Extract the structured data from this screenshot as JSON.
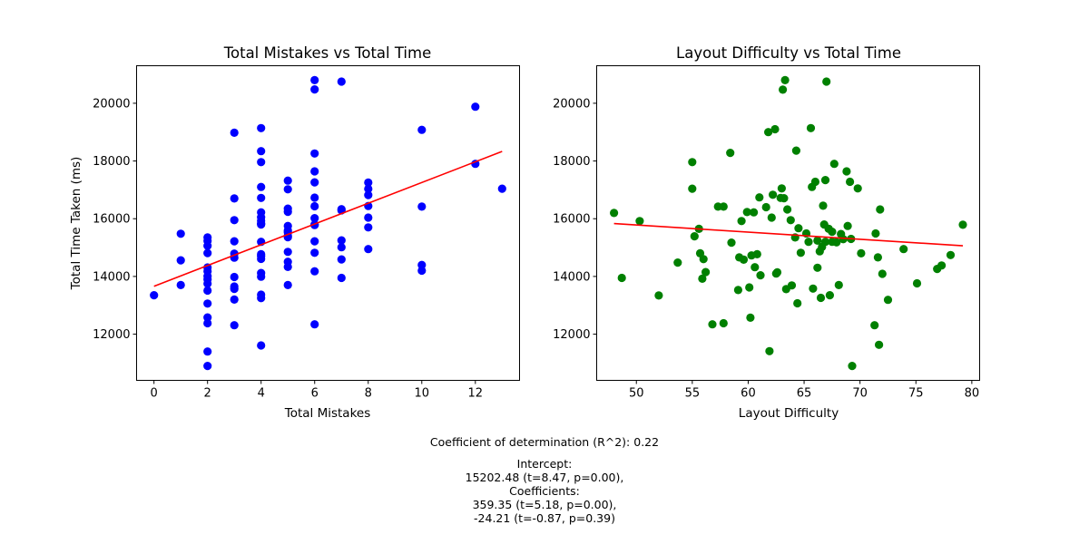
{
  "chart_data": [
    {
      "type": "scatter",
      "title": "Total Mistakes vs Total Time",
      "xlabel": "Total Mistakes",
      "ylabel": "Total Time Taken (ms)",
      "xlim": [
        -0.65,
        13.65
      ],
      "ylim": [
        10400,
        21300
      ],
      "xticks": [
        0,
        2,
        4,
        6,
        8,
        10,
        12
      ],
      "yticks": [
        12000,
        14000,
        16000,
        18000,
        20000
      ],
      "grid": false,
      "point_color": "#0000ff",
      "line_color": "#ff0000",
      "fit_line": {
        "x": [
          0,
          13
        ],
        "y": [
          13660,
          18330
        ]
      },
      "points": {
        "x": [
          0,
          1,
          1,
          1,
          2,
          2,
          2,
          2,
          2,
          2,
          2,
          2,
          2,
          2,
          2,
          2,
          2,
          2,
          2,
          3,
          3,
          3,
          3,
          3,
          3,
          3,
          3,
          3,
          3,
          3,
          4,
          4,
          4,
          4,
          4,
          4,
          4,
          4,
          4,
          4,
          4,
          4,
          4,
          4,
          4,
          4,
          4,
          4,
          4,
          5,
          5,
          5,
          5,
          5,
          5,
          5,
          5,
          5,
          5,
          5,
          5,
          5,
          6,
          6,
          6,
          6,
          6,
          6,
          6,
          6,
          6,
          6,
          6,
          6,
          6,
          6,
          7,
          7,
          7,
          7,
          7,
          7,
          7,
          8,
          8,
          8,
          8,
          8,
          8,
          8,
          10,
          10,
          10,
          10,
          12,
          12,
          13
        ],
        "y": [
          13350,
          15480,
          14560,
          13700,
          15350,
          15230,
          15060,
          14810,
          14310,
          14010,
          13750,
          13510,
          13060,
          12580,
          12380,
          11400,
          10900,
          13900,
          14180,
          18980,
          16700,
          15950,
          15220,
          14790,
          14650,
          13980,
          13650,
          13570,
          13200,
          12310,
          19140,
          18340,
          17960,
          17100,
          16720,
          16220,
          16050,
          15930,
          15830,
          15200,
          14770,
          14610,
          14120,
          13990,
          13370,
          13250,
          11610,
          14700,
          15800,
          17320,
          17020,
          16350,
          16240,
          15750,
          15590,
          15410,
          15360,
          14850,
          14510,
          14330,
          13700,
          15530,
          20800,
          20480,
          18260,
          17640,
          17260,
          16730,
          16430,
          15800,
          15780,
          15220,
          14820,
          14180,
          12340,
          16020,
          20750,
          16330,
          16290,
          15250,
          15010,
          14590,
          13950,
          17250,
          17030,
          16820,
          16440,
          16040,
          15700,
          14950,
          19080,
          16420,
          14400,
          14200,
          19880,
          17900,
          17040
        ]
      }
    },
    {
      "type": "scatter",
      "title": "Layout Difficulty vs Total Time",
      "xlabel": "Layout Difficulty",
      "ylabel": "",
      "xlim": [
        46.45,
        80.7
      ],
      "ylim": [
        10400,
        21300
      ],
      "xticks": [
        50,
        55,
        60,
        65,
        70,
        75,
        80
      ],
      "yticks": [
        12000,
        14000,
        16000,
        18000,
        20000
      ],
      "grid": false,
      "point_color": "#008000",
      "line_color": "#ff0000",
      "fit_line": {
        "x": [
          48,
          79.2
        ],
        "y": [
          15830,
          15060
        ]
      },
      "points": {
        "x": [
          48.0,
          48.7,
          50.3,
          52.0,
          53.7,
          55.0,
          55.0,
          55.2,
          55.6,
          55.7,
          55.9,
          56.0,
          56.2,
          56.8,
          57.3,
          57.8,
          57.8,
          58.4,
          58.5,
          59.1,
          59.2,
          59.4,
          59.6,
          59.9,
          60.1,
          60.2,
          60.3,
          60.5,
          60.6,
          60.8,
          61.0,
          61.1,
          61.6,
          61.8,
          61.9,
          62.1,
          62.2,
          62.4,
          62.5,
          62.6,
          62.9,
          63.0,
          63.1,
          63.2,
          63.3,
          63.4,
          63.5,
          63.8,
          63.9,
          64.2,
          64.3,
          64.4,
          64.5,
          64.7,
          65.2,
          65.4,
          65.6,
          65.7,
          65.8,
          66.0,
          66.2,
          66.2,
          66.4,
          66.5,
          66.6,
          66.7,
          66.8,
          66.9,
          66.9,
          67.0,
          67.2,
          67.3,
          67.5,
          67.5,
          67.7,
          67.9,
          68.1,
          68.3,
          68.5,
          68.8,
          68.9,
          69.1,
          69.2,
          69.3,
          69.8,
          70.1,
          71.3,
          71.4,
          71.6,
          71.7,
          71.8,
          72.0,
          72.5,
          73.9,
          75.1,
          76.9,
          77.3,
          78.1,
          79.2
        ],
        "y": [
          16200,
          13950,
          15920,
          13340,
          14480,
          17960,
          17040,
          15390,
          15650,
          14800,
          13920,
          14600,
          14150,
          12340,
          16420,
          16420,
          12380,
          18280,
          15170,
          13530,
          14660,
          15920,
          14580,
          16230,
          13620,
          12570,
          14730,
          16220,
          14320,
          14770,
          16740,
          14040,
          16400,
          19000,
          11410,
          16040,
          16830,
          19100,
          14100,
          14140,
          16720,
          17050,
          20470,
          16710,
          20800,
          13560,
          16320,
          15950,
          13690,
          15350,
          18360,
          13070,
          15670,
          14820,
          15490,
          15200,
          19140,
          17100,
          13580,
          17280,
          14300,
          15240,
          14870,
          13260,
          15020,
          16450,
          15800,
          17340,
          15200,
          20750,
          15650,
          13350,
          15550,
          15200,
          17900,
          15180,
          13700,
          15470,
          15290,
          17640,
          15750,
          17280,
          15300,
          10900,
          17050,
          14800,
          12310,
          15490,
          14660,
          11630,
          16320,
          14090,
          13190,
          14950,
          13760,
          14260,
          14380,
          14740,
          15790
        ]
      }
    }
  ],
  "stats": {
    "r2_line": "Coefficient of determination (R^2): 0.22",
    "intercept_header": "Intercept:",
    "intercept_value": "15202.48 (t=8.47, p=0.00),",
    "coef_header": "Coefficients:",
    "coef_1": "359.35 (t=5.18, p=0.00),",
    "coef_2": "-24.21 (t=-0.87, p=0.39)"
  }
}
